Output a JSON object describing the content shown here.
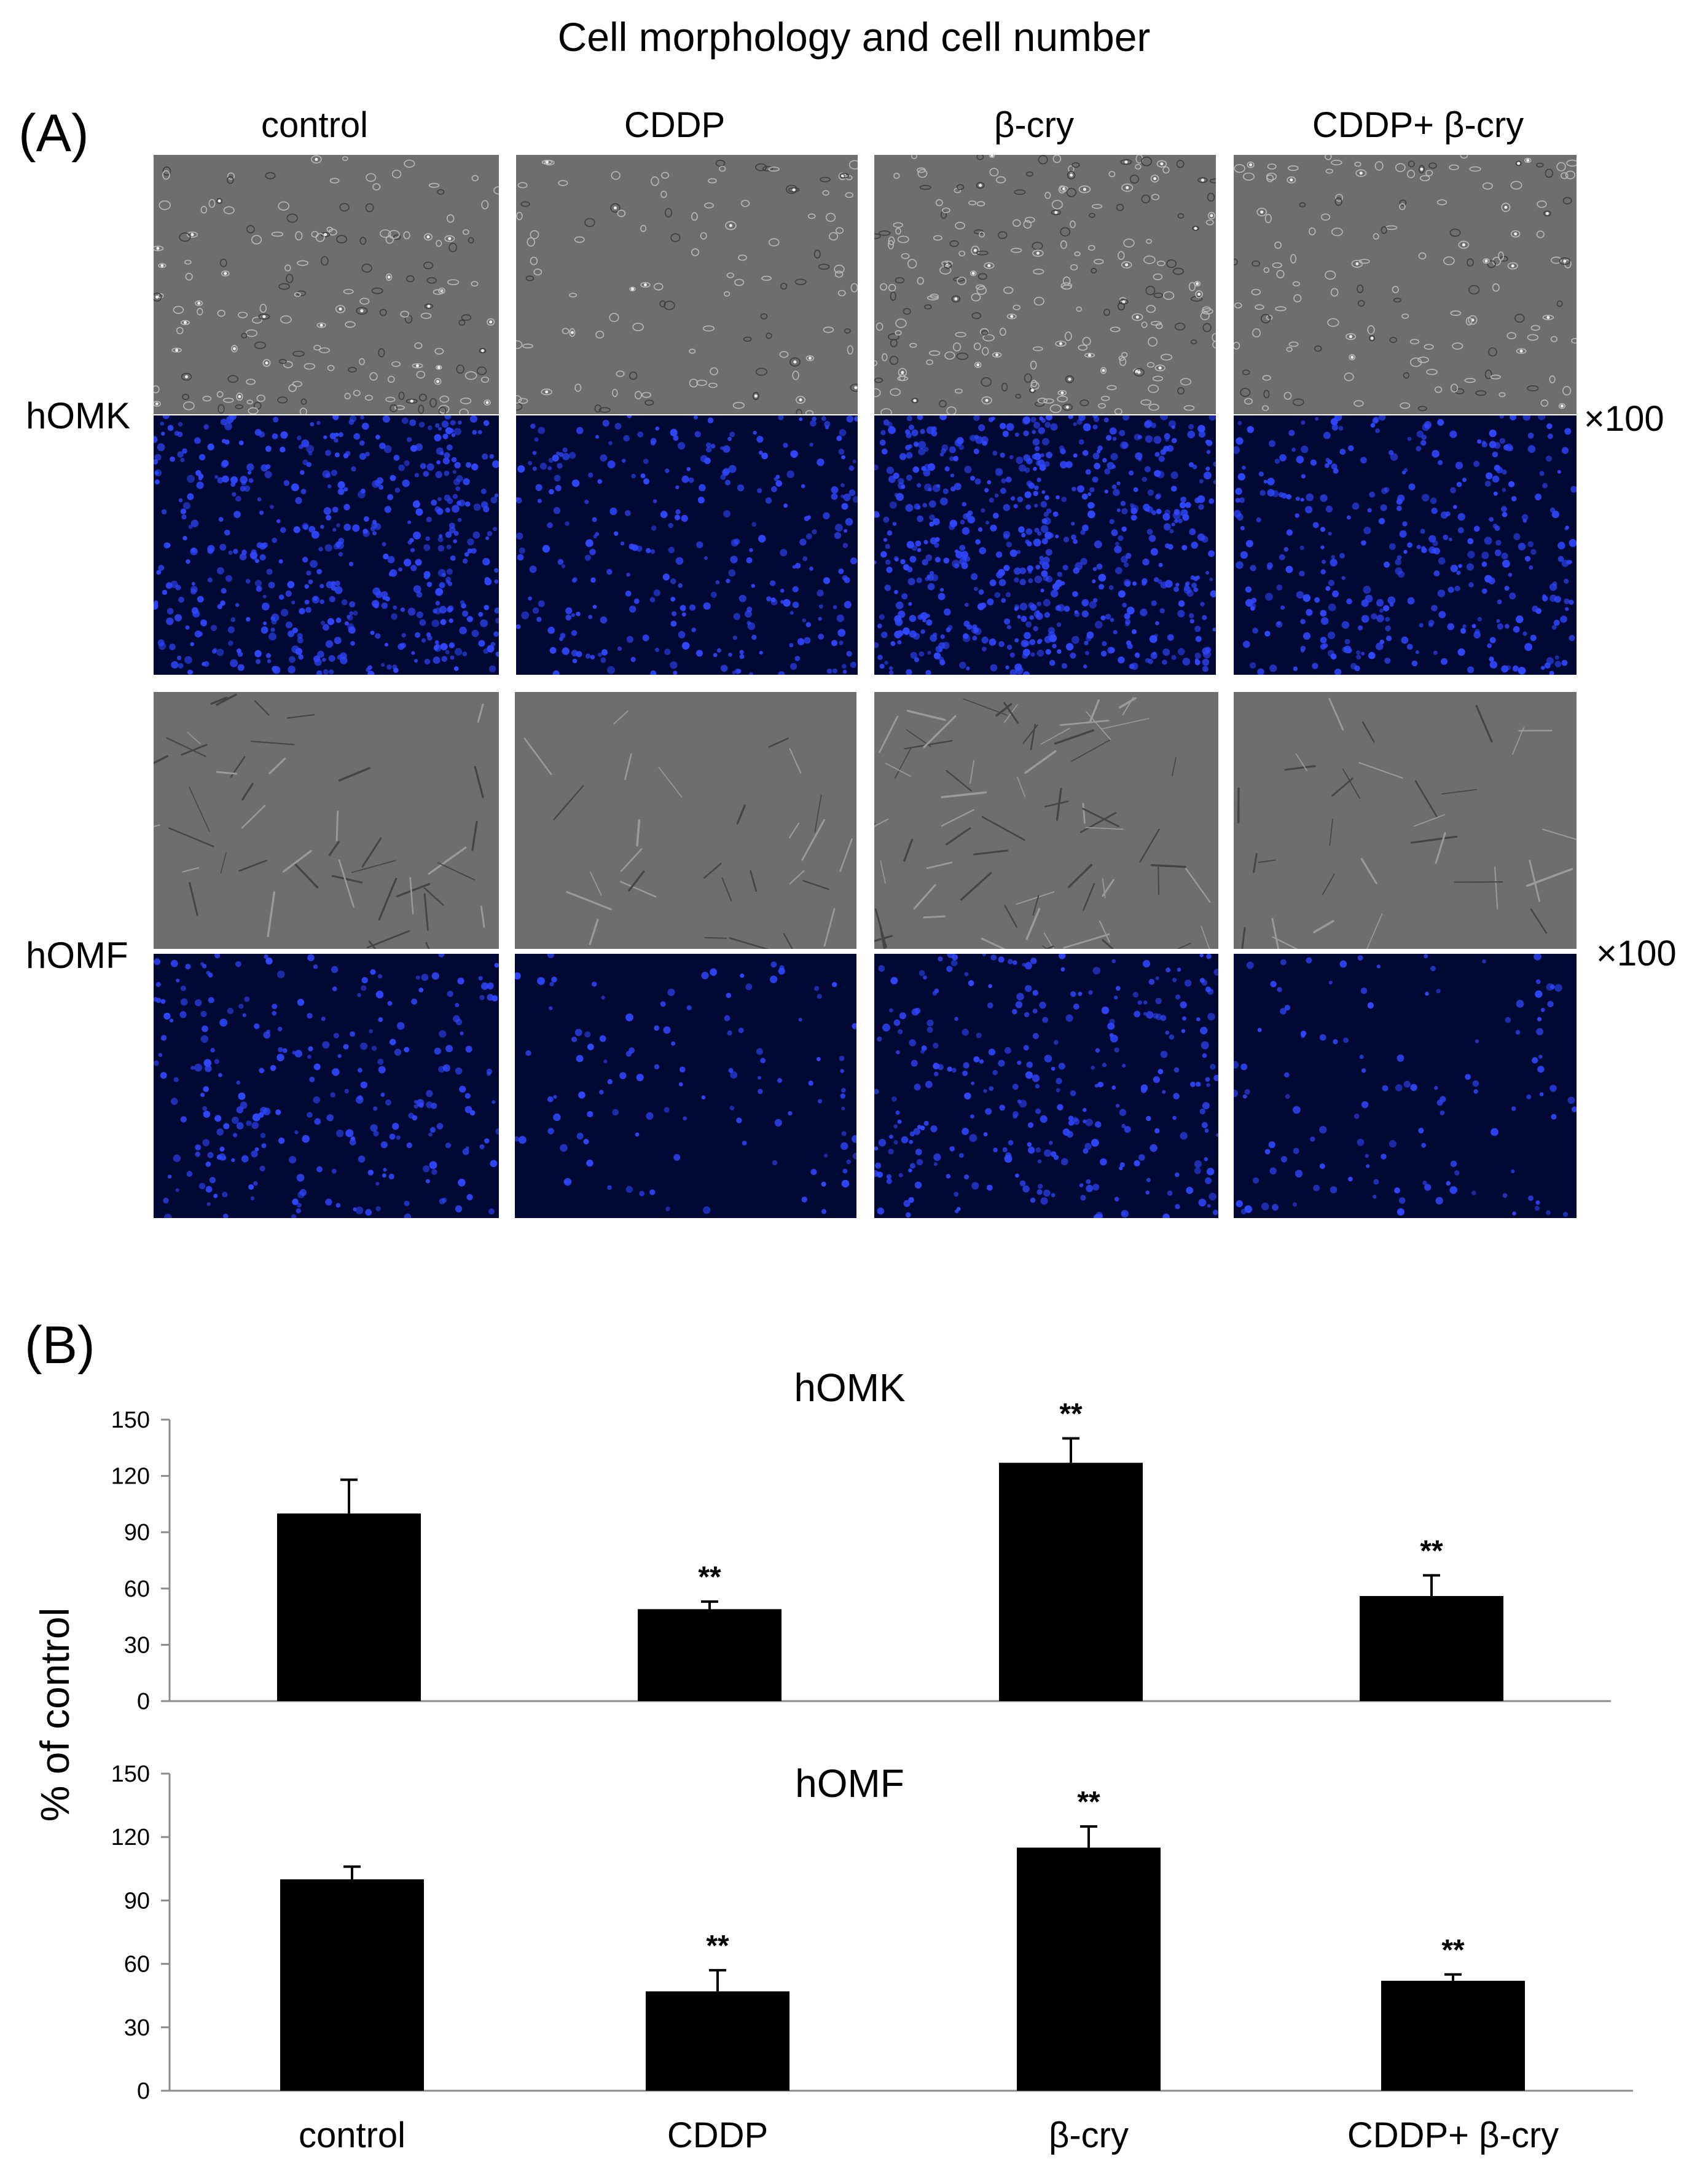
{
  "figure": {
    "title": "Cell morphology and cell number",
    "panel_a_label": "(A)",
    "panel_b_label": "(B)",
    "columns": [
      "control",
      "CDDP",
      "β-cry",
      "CDDP+ β-cry"
    ],
    "rows": [
      {
        "label": "hOMK",
        "magnification": "×100"
      },
      {
        "label": "hOMF",
        "magnification": "×100"
      }
    ],
    "y_axis_label": "% of control",
    "colors": {
      "phase_contrast": "#6e6e6e",
      "dapi_background": "#000834",
      "dapi_nuclei": "#2f47ff",
      "bar": "#000000"
    }
  },
  "chart_data": [
    {
      "type": "bar",
      "title": "hOMK",
      "categories": [
        "control",
        "CDDP",
        "β-cry",
        "CDDP+ β-cry"
      ],
      "values": [
        100,
        49,
        127,
        56
      ],
      "errors": [
        18,
        4,
        13,
        11
      ],
      "annotations": [
        "",
        "**",
        "**",
        "**"
      ],
      "ylabel": "% of control",
      "ylim": [
        0,
        150
      ],
      "yticks": [
        0,
        30,
        60,
        90,
        120,
        150
      ],
      "ytick_labels": [
        "0",
        "30",
        "60",
        "90",
        "120",
        "150"
      ]
    },
    {
      "type": "bar",
      "title": "hOMF",
      "categories": [
        "control",
        "CDDP",
        "β-cry",
        "CDDP+ β-cry"
      ],
      "values": [
        100,
        47,
        115,
        52
      ],
      "errors": [
        6,
        10,
        10,
        3
      ],
      "annotations": [
        "",
        "**",
        "**",
        "**"
      ],
      "ylabel": "% of control",
      "ylim": [
        0,
        150
      ],
      "yticks": [
        0,
        30,
        60,
        90,
        120,
        150
      ],
      "ytick_labels": [
        "0",
        "30",
        "60",
        "90",
        "120",
        "150"
      ]
    }
  ]
}
